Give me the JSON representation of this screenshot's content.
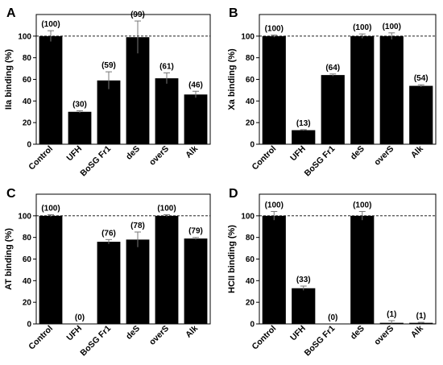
{
  "figure": {
    "bar_color": "#000000",
    "reference_line": {
      "value": 100,
      "style": "dashed"
    }
  },
  "chart_data": [
    {
      "panel": "A",
      "type": "bar",
      "ylabel": "IIa binding (%)",
      "xlabel": "",
      "ylim": [
        0,
        120
      ],
      "yticks": [
        0,
        20,
        40,
        60,
        80,
        100
      ],
      "categories": [
        "Control",
        "UFH",
        "BoSG Fr1",
        "deS",
        "overS",
        "Alk"
      ],
      "values": [
        100,
        30,
        59,
        99,
        61,
        46
      ],
      "errors": [
        5,
        1,
        8,
        15,
        5,
        3
      ],
      "data_labels": [
        "(100)",
        "(30)",
        "(59)",
        "(99)",
        "(61)",
        "(46)"
      ]
    },
    {
      "panel": "B",
      "type": "bar",
      "ylabel": "Xa binding (%)",
      "xlabel": "",
      "ylim": [
        0,
        120
      ],
      "yticks": [
        0,
        20,
        40,
        60,
        80,
        100
      ],
      "categories": [
        "Control",
        "UFH",
        "BoSG Fr1",
        "deS",
        "overS",
        "Alk"
      ],
      "values": [
        100,
        13,
        64,
        100,
        100,
        54
      ],
      "errors": [
        1,
        0.5,
        1,
        2,
        3,
        1
      ],
      "data_labels": [
        "(100)",
        "(13)",
        "(64)",
        "(100)",
        "(100)",
        "(54)"
      ]
    },
    {
      "panel": "C",
      "type": "bar",
      "ylabel": "AT binding (%)",
      "xlabel": "",
      "ylim": [
        0,
        120
      ],
      "yticks": [
        0,
        20,
        40,
        60,
        80,
        100
      ],
      "categories": [
        "Control",
        "UFH",
        "BoSG Fr1",
        "deS",
        "overS",
        "Alk"
      ],
      "values": [
        100,
        0,
        76,
        78,
        100,
        79
      ],
      "errors": [
        1,
        0,
        2,
        7,
        1,
        1
      ],
      "data_labels": [
        "(100)",
        "(0)",
        "(76)",
        "(78)",
        "(100)",
        "(79)"
      ]
    },
    {
      "panel": "D",
      "type": "bar",
      "ylabel": "HCII binding (%)",
      "xlabel": "",
      "ylim": [
        0,
        120
      ],
      "yticks": [
        0,
        20,
        40,
        60,
        80,
        100
      ],
      "categories": [
        "Control",
        "UFH",
        "BoSG Fr1",
        "deS",
        "overS",
        "Alk"
      ],
      "values": [
        100,
        33,
        0,
        100,
        1,
        1
      ],
      "errors": [
        4,
        2,
        0,
        4,
        2,
        0.5
      ],
      "data_labels": [
        "(100)",
        "(33)",
        "(0)",
        "(100)",
        "(1)",
        "(1)"
      ]
    }
  ]
}
